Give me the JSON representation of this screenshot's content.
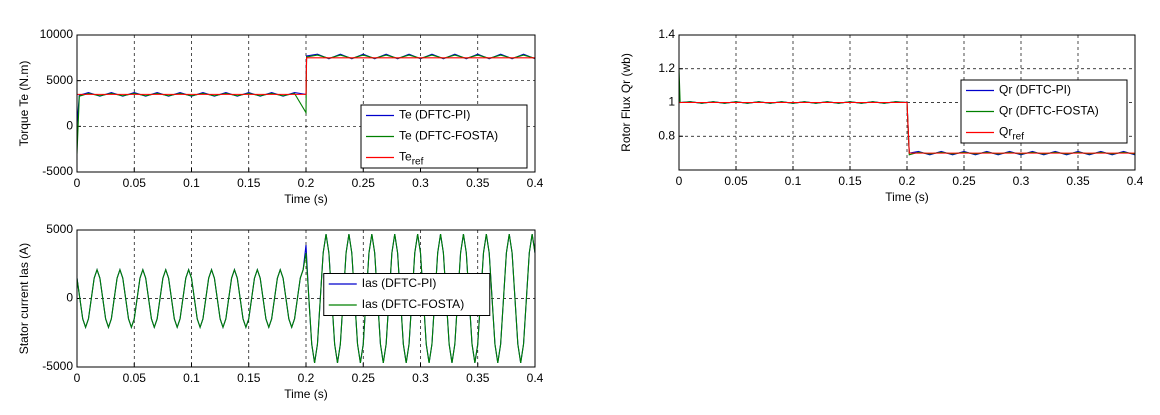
{
  "chart_data": [
    {
      "type": "line",
      "xlabel": "Time (s)",
      "ylabel": "Torque Te (N.m)",
      "x": [
        0,
        0.002,
        0.01,
        0.02,
        0.03,
        0.04,
        0.05,
        0.06,
        0.07,
        0.08,
        0.09,
        0.1,
        0.11,
        0.12,
        0.13,
        0.14,
        0.15,
        0.16,
        0.17,
        0.18,
        0.19,
        0.2,
        0.2005,
        0.21,
        0.22,
        0.23,
        0.24,
        0.25,
        0.26,
        0.27,
        0.28,
        0.29,
        0.3,
        0.31,
        0.32,
        0.33,
        0.34,
        0.35,
        0.36,
        0.37,
        0.38,
        0.39,
        0.4
      ],
      "series": [
        {
          "name": "Te (DFTC-PI)",
          "color": "#0000cc",
          "values": [
            0,
            3400,
            3700,
            3300,
            3700,
            3300,
            3700,
            3300,
            3700,
            3300,
            3700,
            3300,
            3700,
            3300,
            3700,
            3300,
            3700,
            3300,
            3700,
            3300,
            3700,
            3500,
            7700,
            7900,
            7400,
            7900,
            7400,
            7900,
            7400,
            7900,
            7400,
            7900,
            7400,
            7900,
            7400,
            7900,
            7400,
            7900,
            7400,
            7900,
            7400,
            7900,
            7400
          ]
        },
        {
          "name": "Te (DFTC-FOSTA)",
          "color": "#008000",
          "values": [
            -3000,
            3300,
            3600,
            3350,
            3600,
            3350,
            3600,
            3350,
            3600,
            3350,
            3600,
            3350,
            3600,
            3350,
            3600,
            3350,
            3600,
            3350,
            3600,
            3350,
            3600,
            1500,
            7600,
            7800,
            7450,
            7800,
            7450,
            7800,
            7450,
            7800,
            7450,
            7800,
            7450,
            7800,
            7450,
            7800,
            7450,
            7800,
            7450,
            7800,
            7450,
            7800,
            7450
          ]
        },
        {
          "name": "Te",
          "subscript": "ref",
          "color": "#ff0000",
          "values": [
            3500,
            3500,
            3500,
            3500,
            3500,
            3500,
            3500,
            3500,
            3500,
            3500,
            3500,
            3500,
            3500,
            3500,
            3500,
            3500,
            3500,
            3500,
            3500,
            3500,
            3500,
            3500,
            7500,
            7500,
            7500,
            7500,
            7500,
            7500,
            7500,
            7500,
            7500,
            7500,
            7500,
            7500,
            7500,
            7500,
            7500,
            7500,
            7500,
            7500,
            7500,
            7500,
            7500
          ]
        }
      ],
      "xlim": [
        0,
        0.4
      ],
      "ylim": [
        -5000,
        10000
      ],
      "xticks": [
        0,
        0.05,
        0.1,
        0.15,
        0.2,
        0.25,
        0.3,
        0.35,
        0.4
      ],
      "yticks": [
        -5000,
        0,
        5000,
        10000
      ],
      "grid": true,
      "legend": "lower right"
    },
    {
      "type": "line",
      "xlabel": "Time (s)",
      "ylabel": "Rotor Flux Qr (wb)",
      "x": [
        0,
        0.001,
        0.01,
        0.02,
        0.03,
        0.04,
        0.05,
        0.06,
        0.07,
        0.08,
        0.09,
        0.1,
        0.11,
        0.12,
        0.13,
        0.14,
        0.15,
        0.16,
        0.17,
        0.18,
        0.19,
        0.2,
        0.202,
        0.21,
        0.22,
        0.23,
        0.24,
        0.25,
        0.26,
        0.27,
        0.28,
        0.29,
        0.3,
        0.31,
        0.32,
        0.33,
        0.34,
        0.35,
        0.36,
        0.37,
        0.38,
        0.39,
        0.4
      ],
      "series": [
        {
          "name": "Qr (DFTC-PI)",
          "color": "#0000cc",
          "values": [
            1,
            1,
            1.005,
            0.995,
            1.005,
            0.995,
            1.005,
            0.995,
            1.005,
            0.995,
            1.005,
            0.995,
            1.005,
            0.995,
            1.005,
            0.995,
            1.005,
            0.995,
            1.005,
            0.995,
            1.005,
            1,
            0.7,
            0.71,
            0.69,
            0.71,
            0.69,
            0.71,
            0.69,
            0.71,
            0.69,
            0.71,
            0.69,
            0.71,
            0.69,
            0.71,
            0.69,
            0.71,
            0.69,
            0.71,
            0.69,
            0.71,
            0.69
          ]
        },
        {
          "name": "Qr (DFTC-FOSTA)",
          "color": "#008000",
          "values": [
            1.2,
            1,
            1.004,
            0.996,
            1.004,
            0.996,
            1.004,
            0.996,
            1.004,
            0.996,
            1.004,
            0.996,
            1.004,
            0.996,
            1.004,
            0.996,
            1.004,
            0.996,
            1.004,
            0.996,
            1.004,
            1,
            0.69,
            0.705,
            0.695,
            0.705,
            0.695,
            0.705,
            0.695,
            0.705,
            0.695,
            0.705,
            0.695,
            0.705,
            0.695,
            0.705,
            0.695,
            0.705,
            0.695,
            0.705,
            0.695,
            0.705,
            0.695
          ]
        },
        {
          "name": "Qr",
          "subscript": "ref",
          "color": "#ff0000",
          "values": [
            1,
            1,
            1,
            1,
            1,
            1,
            1,
            1,
            1,
            1,
            1,
            1,
            1,
            1,
            1,
            1,
            1,
            1,
            1,
            1,
            1,
            1,
            0.7,
            0.7,
            0.7,
            0.7,
            0.7,
            0.7,
            0.7,
            0.7,
            0.7,
            0.7,
            0.7,
            0.7,
            0.7,
            0.7,
            0.7,
            0.7,
            0.7,
            0.7,
            0.7,
            0.7,
            0.7
          ]
        }
      ],
      "xlim": [
        0,
        0.4
      ],
      "ylim": [
        0.6,
        1.4
      ],
      "xticks": [
        0,
        0.05,
        0.1,
        0.15,
        0.2,
        0.25,
        0.3,
        0.35,
        0.4
      ],
      "yticks": [
        0.8,
        1,
        1.2,
        1.4
      ],
      "grid": true,
      "legend": "center right"
    },
    {
      "type": "line",
      "xlabel": "Time (s)",
      "ylabel": "Stator current Ias (A)",
      "x": [
        0,
        0.0025,
        0.005,
        0.0075,
        0.01,
        0.0125,
        0.015,
        0.0175,
        0.02,
        0.0225,
        0.025,
        0.0275,
        0.03,
        0.0325,
        0.035,
        0.0375,
        0.04,
        0.0425,
        0.045,
        0.0475,
        0.05,
        0.0525,
        0.055,
        0.0575,
        0.06,
        0.0625,
        0.065,
        0.0675,
        0.07,
        0.0725,
        0.075,
        0.0775,
        0.08,
        0.0825,
        0.085,
        0.0875,
        0.09,
        0.0925,
        0.095,
        0.0975,
        0.1,
        0.1025,
        0.105,
        0.1075,
        0.11,
        0.1125,
        0.115,
        0.1175,
        0.12,
        0.1225,
        0.125,
        0.1275,
        0.13,
        0.1325,
        0.135,
        0.1375,
        0.14,
        0.1425,
        0.145,
        0.1475,
        0.15,
        0.1525,
        0.155,
        0.1575,
        0.16,
        0.1625,
        0.165,
        0.1675,
        0.17,
        0.1725,
        0.175,
        0.1775,
        0.18,
        0.1825,
        0.185,
        0.1875,
        0.19,
        0.1925,
        0.195,
        0.1975,
        0.2,
        0.2025,
        0.205,
        0.2075,
        0.21,
        0.2125,
        0.215,
        0.2175,
        0.22,
        0.2225,
        0.225,
        0.2275,
        0.23,
        0.2325,
        0.235,
        0.2375,
        0.24,
        0.2425,
        0.245,
        0.2475,
        0.25,
        0.2525,
        0.255,
        0.2575,
        0.26,
        0.2625,
        0.265,
        0.2675,
        0.27,
        0.2725,
        0.275,
        0.2775,
        0.28,
        0.2825,
        0.285,
        0.2875,
        0.29,
        0.2925,
        0.295,
        0.2975,
        0.3,
        0.3025,
        0.305,
        0.3075,
        0.31,
        0.3125,
        0.315,
        0.3175,
        0.32,
        0.3225,
        0.325,
        0.3275,
        0.33,
        0.3325,
        0.335,
        0.3375,
        0.34,
        0.3425,
        0.345,
        0.3475,
        0.35,
        0.3525,
        0.355,
        0.3575,
        0.36,
        0.3625,
        0.365,
        0.3675,
        0.37,
        0.3725,
        0.375,
        0.3775,
        0.38,
        0.3825,
        0.385,
        0.3875,
        0.39,
        0.3925,
        0.395,
        0.3975,
        0.4
      ],
      "series": [
        {
          "name": "Ias (DFTC-PI)",
          "color": "#0000cc",
          "values": [
            1485,
            0,
            -1485,
            -2100,
            -1485,
            0,
            1485,
            2100,
            1485,
            0,
            -1485,
            -2100,
            -1485,
            0,
            1485,
            2100,
            1485,
            0,
            -1485,
            -2100,
            -1485,
            0,
            1485,
            2100,
            1485,
            0,
            -1485,
            -2100,
            -1485,
            0,
            1485,
            2100,
            1485,
            0,
            -1485,
            -2100,
            -1485,
            0,
            1485,
            2100,
            1485,
            0,
            -1485,
            -2100,
            -1485,
            0,
            1485,
            2100,
            1485,
            0,
            -1485,
            -2100,
            -1485,
            0,
            1485,
            2100,
            1485,
            0,
            -1485,
            -2100,
            -1485,
            0,
            1485,
            2100,
            1485,
            0,
            -1485,
            -2100,
            -1485,
            0,
            1485,
            2100,
            1485,
            0,
            -1485,
            -2100,
            -1485,
            0,
            1485,
            2100,
            3900,
            0,
            -3323,
            -4700,
            -3323,
            0,
            3323,
            4700,
            3323,
            0,
            -3323,
            -4700,
            -3323,
            0,
            3323,
            4700,
            3323,
            0,
            -3323,
            -4700,
            -3323,
            0,
            3323,
            4700,
            3323,
            0,
            -3323,
            -4700,
            -3323,
            0,
            3323,
            4700,
            3323,
            0,
            -3323,
            -4700,
            -3323,
            0,
            3323,
            4700,
            3323,
            0,
            -3323,
            -4700,
            -3323,
            0,
            3323,
            4700,
            3323,
            0,
            -3323,
            -4700,
            -3323,
            0,
            3323,
            4700,
            3323,
            0,
            -3323,
            -4700,
            -3323,
            0,
            3323,
            4700,
            3323,
            0,
            -3323,
            -4700,
            -3323,
            0,
            3323,
            4700,
            3323,
            0,
            -3323,
            -4700,
            -3323,
            0,
            3323,
            4700,
            3323
          ]
        },
        {
          "name": "Ias (DFTC-FOSTA)",
          "color": "#008000",
          "values": [
            1485,
            0,
            -1485,
            -2100,
            -1485,
            0,
            1485,
            2100,
            1485,
            0,
            -1485,
            -2100,
            -1485,
            0,
            1485,
            2100,
            1485,
            0,
            -1485,
            -2100,
            -1485,
            0,
            1485,
            2100,
            1485,
            0,
            -1485,
            -2100,
            -1485,
            0,
            1485,
            2100,
            1485,
            0,
            -1485,
            -2100,
            -1485,
            0,
            1485,
            2100,
            1485,
            0,
            -1485,
            -2100,
            -1485,
            0,
            1485,
            2100,
            1485,
            0,
            -1485,
            -2100,
            -1485,
            0,
            1485,
            2100,
            1485,
            0,
            -1485,
            -2100,
            -1485,
            0,
            1485,
            2100,
            1485,
            0,
            -1485,
            -2100,
            -1485,
            0,
            1485,
            2100,
            1485,
            0,
            -1485,
            -2100,
            -1485,
            0,
            1485,
            2100,
            3323,
            0,
            -3323,
            -4700,
            -3323,
            0,
            3323,
            4700,
            3323,
            0,
            -3323,
            -4700,
            -3323,
            0,
            3323,
            4700,
            3323,
            0,
            -3323,
            -4700,
            -3323,
            0,
            3323,
            4700,
            3323,
            0,
            -3323,
            -4700,
            -3323,
            0,
            3323,
            4700,
            3323,
            0,
            -3323,
            -4700,
            -3323,
            0,
            3323,
            4700,
            3323,
            0,
            -3323,
            -4700,
            -3323,
            0,
            3323,
            4700,
            3323,
            0,
            -3323,
            -4700,
            -3323,
            0,
            3323,
            4700,
            3323,
            0,
            -3323,
            -4700,
            -3323,
            0,
            3323,
            4700,
            3323,
            0,
            -3323,
            -4700,
            -3323,
            0,
            3323,
            4700,
            3323,
            0,
            -3323,
            -4700,
            -3323,
            0,
            3323,
            4700,
            3323
          ]
        }
      ],
      "xlim": [
        0,
        0.4
      ],
      "ylim": [
        -5000,
        5000
      ],
      "xticks": [
        0,
        0.05,
        0.1,
        0.15,
        0.2,
        0.25,
        0.3,
        0.35,
        0.4
      ],
      "yticks": [
        -5000,
        0,
        5000
      ],
      "grid": true,
      "legend": "center"
    }
  ]
}
